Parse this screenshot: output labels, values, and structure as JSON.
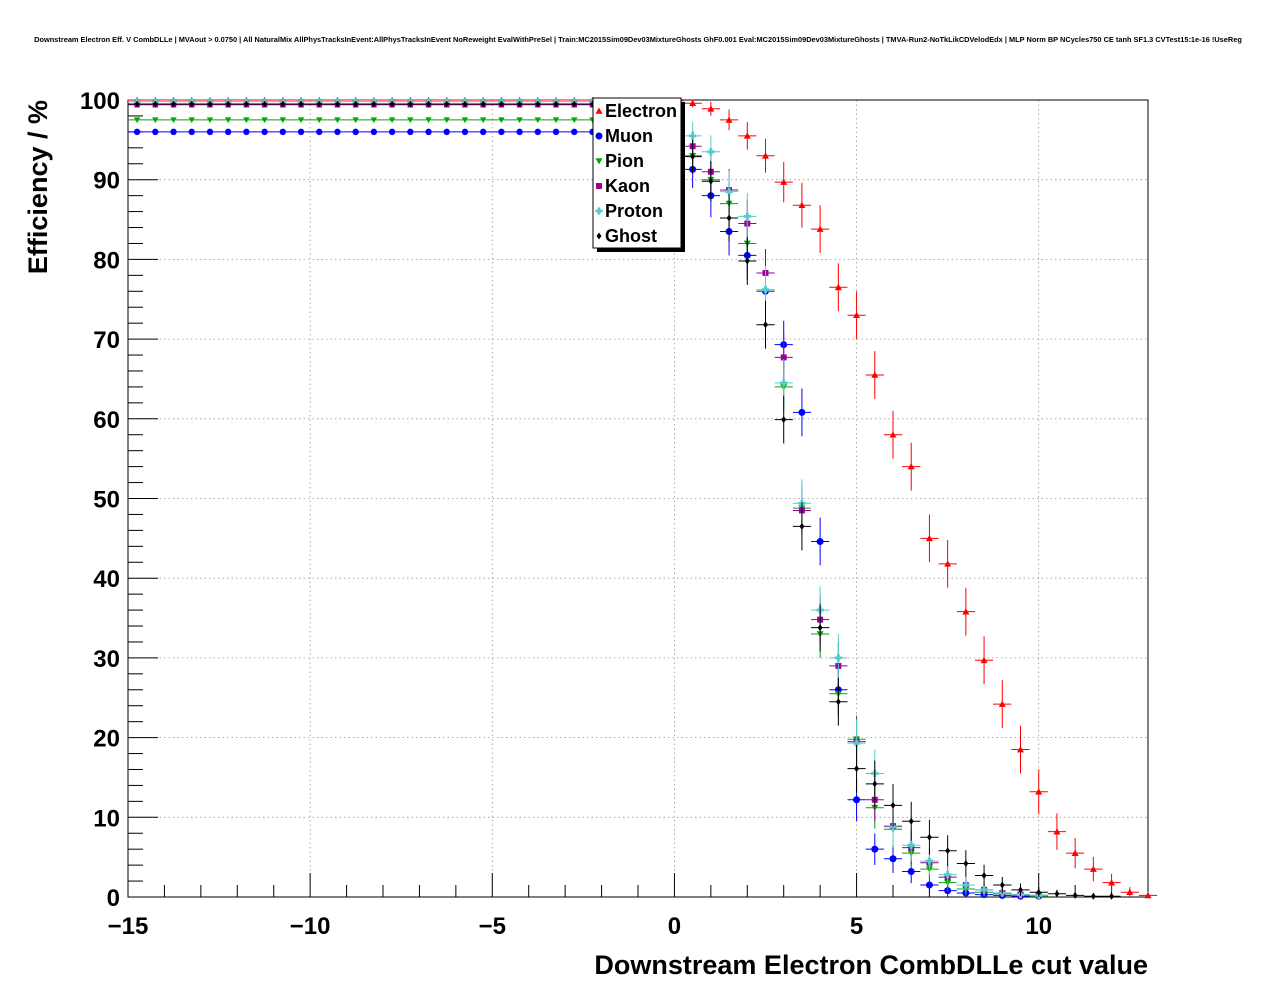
{
  "chart_data": {
    "type": "scatter",
    "title": "Downstream Electron Eff. V CombDLLe | MVAout > 0.0750 | All NaturalMix AllPhysTracksInEvent:AllPhysTracksInEvent NoReweight EvalWithPreSel | Train:MC2015Sim09Dev03MixtureGhosts GhF0.001 Eval:MC2015Sim09Dev03MixtureGhosts | TMVA-Run2-NoTkLikCDVelodEdx | MLP Norm BP NCycles750 CE tanh SF1.3 CVTest15:1e-16 !UseReg",
    "xlabel": "Downstream Electron CombDLLe cut value",
    "ylabel": "Efficiency / %",
    "xlim": [
      -15,
      13
    ],
    "ylim": [
      0,
      100
    ],
    "x_ticks": [
      -15,
      -10,
      -5,
      0,
      5,
      10
    ],
    "y_ticks": [
      0,
      10,
      20,
      30,
      40,
      50,
      60,
      70,
      80,
      90,
      100
    ],
    "x_tick_labels": [
      "−15",
      "−10",
      "−5",
      "0",
      "5",
      "10"
    ],
    "y_tick_labels": [
      "0",
      "10",
      "20",
      "30",
      "40",
      "50",
      "60",
      "70",
      "80",
      "90",
      "100"
    ],
    "grid": true,
    "legend_position": "top-center",
    "series": [
      {
        "name": "Electron",
        "color": "#ff0000",
        "marker": "triangle-up",
        "x": [
          -2,
          0,
          0.5,
          1.0,
          1.5,
          2.0,
          2.5,
          3.0,
          3.5,
          4.0,
          4.5,
          5.0,
          5.5,
          6.0,
          6.5,
          7.0,
          7.5,
          8.0,
          8.5,
          9.0,
          9.5,
          10.0,
          10.5,
          11.0,
          11.5,
          12.0,
          12.5,
          13.0
        ],
        "y": [
          100,
          99.9,
          99.6,
          98.9,
          97.5,
          95.5,
          93,
          89.7,
          86.8,
          83.8,
          76.5,
          73,
          65.5,
          58,
          54,
          45,
          41.8,
          35.8,
          29.7,
          24.2,
          18.5,
          13.2,
          8.2,
          5.5,
          3.5,
          1.8,
          0.6,
          0.2
        ]
      },
      {
        "name": "Muon",
        "color": "#0000ff",
        "marker": "circle",
        "x": [
          -2,
          0,
          0.5,
          1.0,
          1.5,
          2.0,
          2.5,
          3.0,
          3.5,
          4.0,
          4.5,
          5.0,
          5.5,
          6.0,
          6.5,
          7.0,
          7.5,
          8.0,
          8.5,
          9.0,
          9.5,
          10.0
        ],
        "y": [
          96,
          94,
          91.3,
          88,
          83.5,
          80.5,
          76,
          69.3,
          60.8,
          44.6,
          26,
          12.2,
          6,
          4.8,
          3.2,
          1.5,
          0.8,
          0.5,
          0.3,
          0.2,
          0.1,
          0.1
        ]
      },
      {
        "name": "Pion",
        "color": "#00aa00",
        "marker": "triangle-down",
        "x": [
          -2,
          0,
          0.5,
          1.0,
          1.5,
          2.0,
          2.5,
          3.0,
          3.5,
          4.0,
          4.5,
          5.0,
          5.5,
          6.0,
          6.5,
          7.0,
          7.5,
          8.0,
          8.5,
          9.0,
          9.5,
          10.0
        ],
        "y": [
          97.5,
          95,
          93,
          90,
          87,
          82,
          76,
          64,
          48.8,
          33,
          25.5,
          19.8,
          11.2,
          8.5,
          5.5,
          3.5,
          1.8,
          1.0,
          0.6,
          0.4,
          0.2,
          0.1
        ]
      },
      {
        "name": "Kaon",
        "color": "#990099",
        "marker": "square",
        "x": [
          -2,
          0,
          0.5,
          1.0,
          1.5,
          2.0,
          2.5,
          3.0,
          3.5,
          4.0,
          4.5,
          5.0,
          5.5,
          6.0,
          6.5,
          7.0,
          7.5,
          8.0,
          8.5,
          9.0,
          9.5,
          10.0
        ],
        "y": [
          99.4,
          96.5,
          94.2,
          91,
          88.7,
          84.5,
          78.3,
          67.7,
          48.5,
          34.8,
          29,
          19.5,
          12.2,
          8.9,
          6.2,
          4.3,
          2.5,
          1.5,
          0.9,
          0.5,
          0.3,
          0.2
        ]
      },
      {
        "name": "Proton",
        "color": "#55cccc",
        "marker": "cross",
        "x": [
          -2,
          0,
          0.5,
          1.0,
          1.5,
          2.0,
          2.5,
          3.0,
          3.5,
          4.0,
          4.5,
          5.0,
          5.5,
          6.0,
          6.5,
          7.0,
          7.5,
          8.0,
          8.5,
          9.0,
          9.5,
          10.0
        ],
        "y": [
          99.8,
          97.5,
          95.5,
          93.5,
          88.5,
          85.4,
          76.2,
          64.5,
          49.4,
          36,
          30,
          19.3,
          15.5,
          8.8,
          6.5,
          4.5,
          2.8,
          1.5,
          0.9,
          0.5,
          0.3,
          0.2
        ]
      },
      {
        "name": "Ghost",
        "color": "#000000",
        "marker": "diamond",
        "x": [
          -2,
          0,
          0.5,
          1.0,
          1.5,
          2.0,
          2.5,
          3.0,
          3.5,
          4.0,
          4.5,
          5.0,
          5.5,
          6.0,
          6.5,
          7.0,
          7.5,
          8.0,
          8.5,
          9.0,
          9.5,
          10.0,
          10.5,
          11.0,
          11.5,
          12.0
        ],
        "y": [
          99.5,
          94.3,
          92.9,
          89.8,
          85.2,
          79.8,
          71.8,
          59.9,
          46.5,
          33.8,
          24.5,
          16.1,
          14.2,
          11.5,
          9.5,
          7.5,
          5.8,
          4.2,
          2.7,
          1.5,
          0.9,
          0.6,
          0.4,
          0.2,
          0.1,
          0.1
        ]
      }
    ]
  }
}
